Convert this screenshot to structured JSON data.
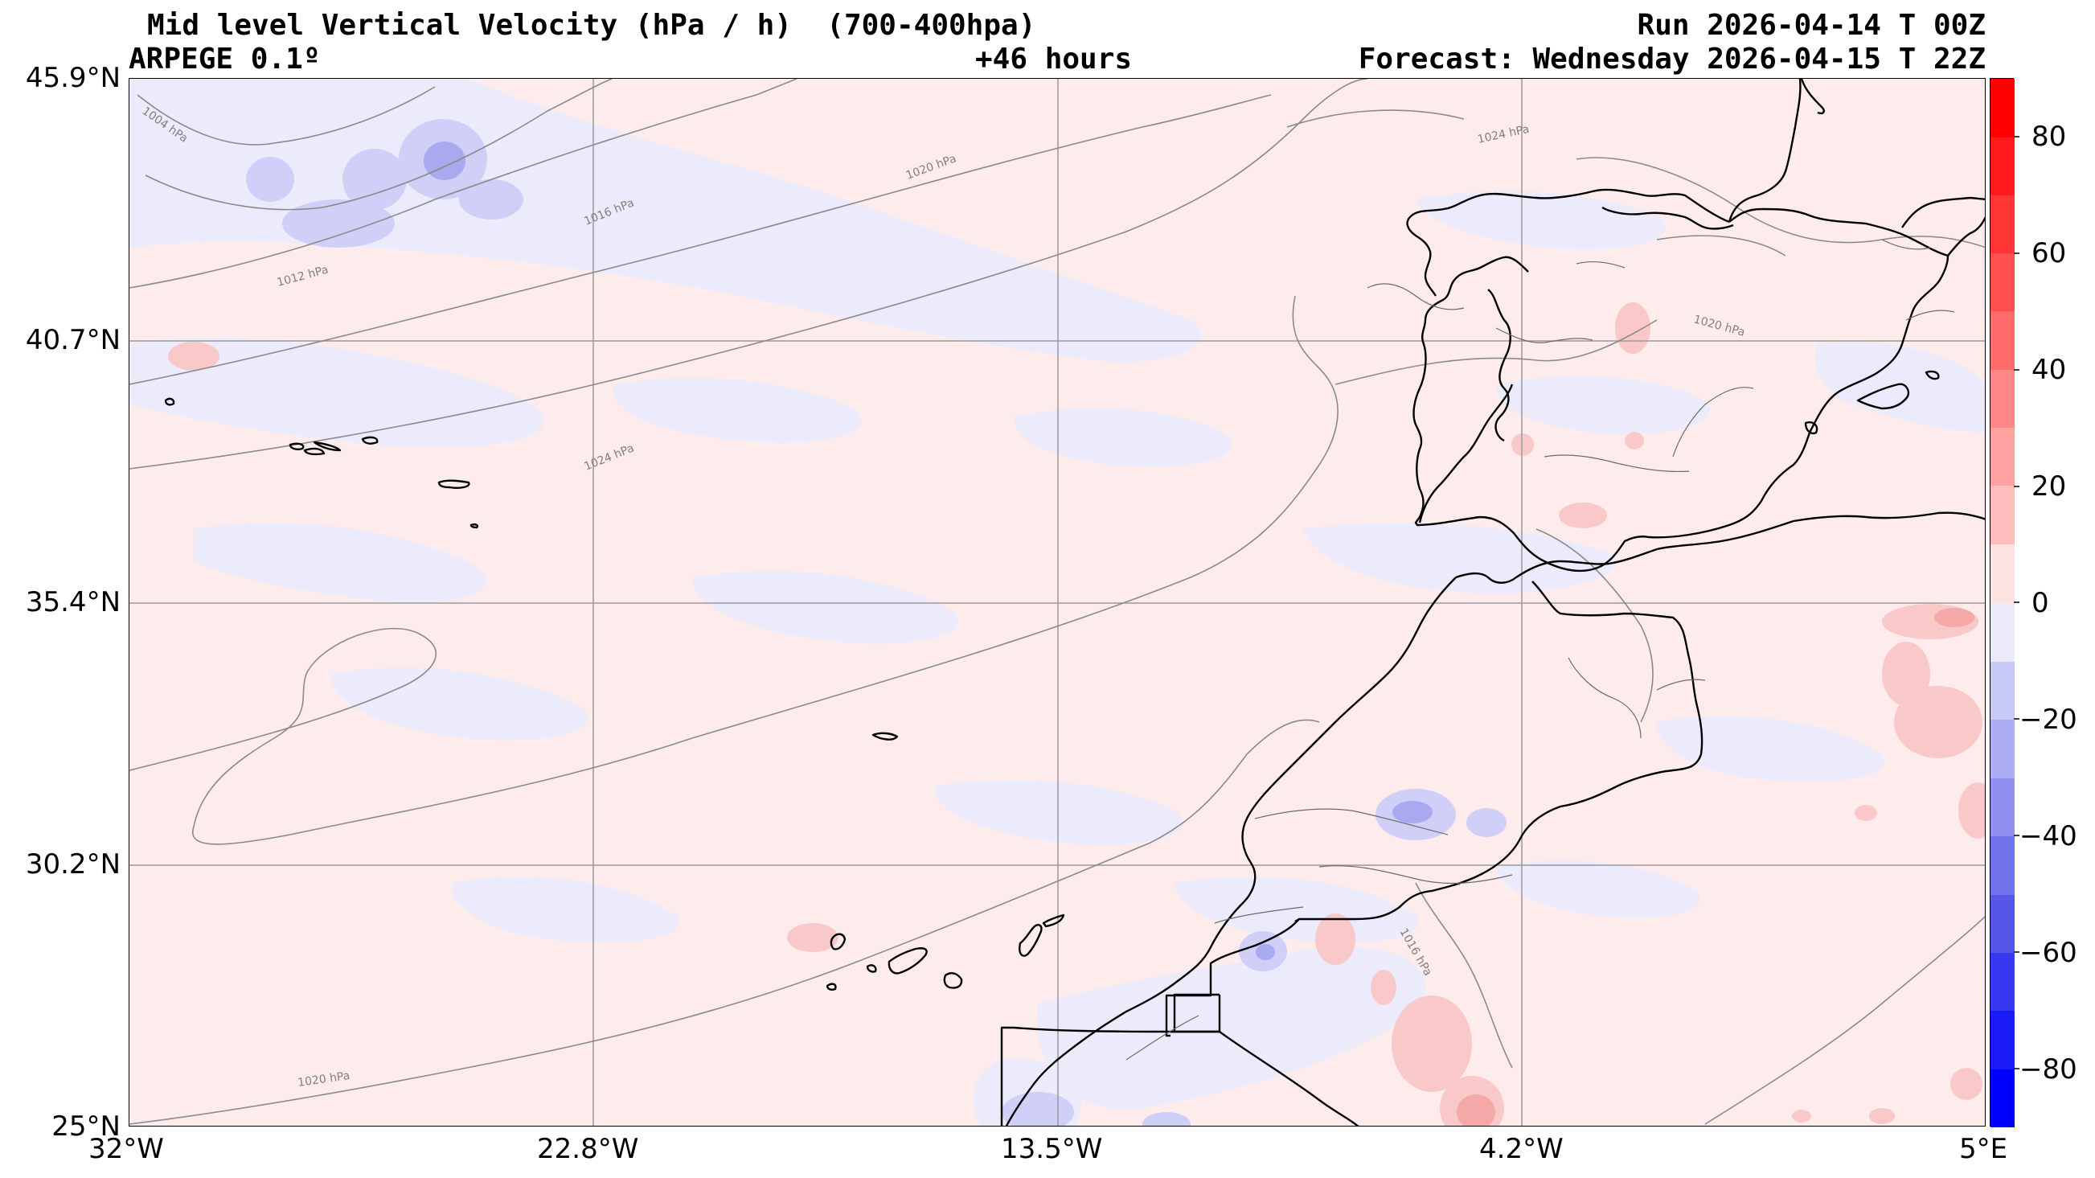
{
  "header": {
    "title": "Mid level Vertical Velocity (hPa / h)  (700-400hpa)",
    "model": "ARPEGE 0.1º",
    "lead": "+46 hours",
    "run": "Run 2026-04-14 T 00Z",
    "forecast": "Forecast: Wednesday 2026-04-15 T 22Z"
  },
  "map": {
    "lat_labels": [
      "45.9°N",
      "40.7°N",
      "35.4°N",
      "30.2°N",
      "25°N"
    ],
    "lon_labels": [
      "32°W",
      "22.8°W",
      "13.5°W",
      "4.2°W",
      "5°E"
    ],
    "isobar_labels": [
      "1004 hPa",
      "1012 hPa",
      "1016 hPa",
      "1020 hPa",
      "1024 hPa",
      "1024 hPa",
      "1020 hPa",
      "1020 hPa",
      "1016 hPa"
    ],
    "colors": {
      "positive": "#ff0000",
      "negative": "#0000ff",
      "near_zero_pos": "#fdeaea",
      "near_zero_neg": "#ebebfb"
    }
  },
  "colorbar": {
    "labels": [
      "80",
      "60",
      "40",
      "20",
      "0",
      "−20",
      "−40",
      "−60",
      "−80"
    ],
    "range": [
      -90,
      90
    ]
  }
}
